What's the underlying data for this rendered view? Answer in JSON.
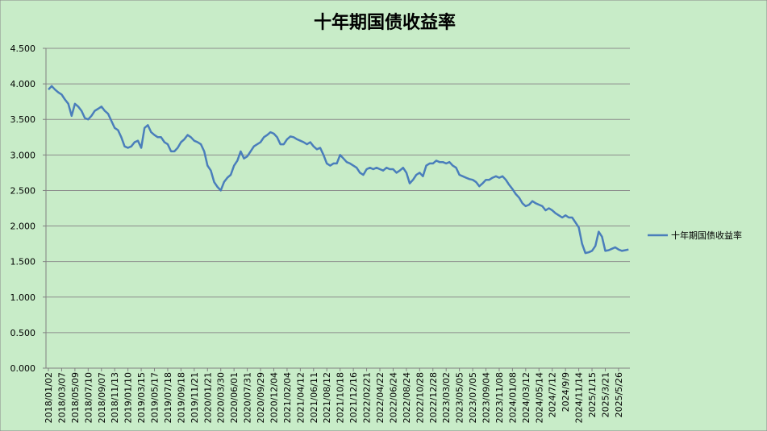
{
  "chart_data": {
    "type": "line",
    "title": "十年期国债收益率",
    "categories": [
      "2018/01/02",
      null,
      null,
      null,
      "2018/03/07",
      null,
      null,
      null,
      "2018/05/09",
      null,
      null,
      null,
      "2018/07/10",
      null,
      null,
      null,
      "2018/09/07",
      null,
      null,
      null,
      "2018/11/13",
      null,
      null,
      null,
      "2019/01/10",
      null,
      null,
      null,
      "2019/03/15",
      null,
      null,
      null,
      "2019/05/17",
      null,
      null,
      null,
      "2019/07/18",
      null,
      null,
      null,
      "2019/09/18",
      null,
      null,
      null,
      "2019/11/21",
      null,
      null,
      null,
      "2020/01/21",
      null,
      null,
      null,
      "2020/03/30",
      null,
      null,
      null,
      "2020/06/01",
      null,
      null,
      null,
      "2020/07/31",
      null,
      null,
      null,
      "2020/09/29",
      null,
      null,
      null,
      "2020/12/04",
      null,
      null,
      null,
      "2021/02/04",
      null,
      null,
      null,
      "2021/04/12",
      null,
      null,
      null,
      "2021/06/11",
      null,
      null,
      null,
      "2021/08/12",
      null,
      null,
      null,
      "2021/10/18",
      null,
      null,
      null,
      "2021/12/16",
      null,
      null,
      null,
      "2022/02/21",
      null,
      null,
      null,
      "2022/04/22",
      null,
      null,
      null,
      "2022/06/24",
      null,
      null,
      null,
      "2022/08/24",
      null,
      null,
      null,
      "2022/10/28",
      null,
      null,
      null,
      "2022/12/28",
      null,
      null,
      null,
      "2023/03/02",
      null,
      null,
      null,
      "2023/05/05",
      null,
      null,
      null,
      "2023/07/05",
      null,
      null,
      null,
      "2023/09/04",
      null,
      null,
      null,
      "2023/11/08",
      null,
      null,
      null,
      "2024/01/08",
      null,
      null,
      null,
      "2024/03/12",
      null,
      null,
      null,
      "2024/05/14",
      null,
      null,
      null,
      "2024/7/12",
      null,
      null,
      null,
      "2024/9/9",
      null,
      null,
      null,
      "2024/11/14",
      null,
      null,
      null,
      "2025/1/15",
      null,
      null,
      null,
      "2025/3/21",
      null,
      null,
      null,
      "2025/5/26",
      null,
      null,
      null
    ],
    "series": [
      {
        "name": "十年期国债收益率",
        "color": "#4a7ebb",
        "values": [
          3.92,
          3.97,
          3.92,
          3.88,
          3.85,
          3.78,
          3.72,
          3.55,
          3.72,
          3.68,
          3.62,
          3.52,
          3.5,
          3.55,
          3.62,
          3.65,
          3.68,
          3.62,
          3.58,
          3.48,
          3.38,
          3.35,
          3.25,
          3.12,
          3.1,
          3.12,
          3.18,
          3.2,
          3.1,
          3.38,
          3.42,
          3.32,
          3.28,
          3.25,
          3.25,
          3.18,
          3.15,
          3.05,
          3.05,
          3.1,
          3.18,
          3.22,
          3.28,
          3.25,
          3.2,
          3.18,
          3.15,
          3.05,
          2.85,
          2.78,
          2.62,
          2.55,
          2.5,
          2.62,
          2.68,
          2.72,
          2.85,
          2.92,
          3.05,
          2.95,
          2.98,
          3.05,
          3.12,
          3.15,
          3.18,
          3.25,
          3.28,
          3.32,
          3.3,
          3.25,
          3.15,
          3.15,
          3.22,
          3.26,
          3.25,
          3.22,
          3.2,
          3.18,
          3.15,
          3.18,
          3.12,
          3.08,
          3.1,
          3.0,
          2.88,
          2.85,
          2.88,
          2.88,
          3.0,
          2.95,
          2.9,
          2.88,
          2.85,
          2.82,
          2.75,
          2.72,
          2.8,
          2.82,
          2.8,
          2.82,
          2.8,
          2.78,
          2.82,
          2.8,
          2.8,
          2.75,
          2.78,
          2.82,
          2.75,
          2.6,
          2.65,
          2.72,
          2.75,
          2.7,
          2.85,
          2.88,
          2.88,
          2.92,
          2.9,
          2.9,
          2.88,
          2.9,
          2.85,
          2.82,
          2.72,
          2.7,
          2.68,
          2.66,
          2.65,
          2.62,
          2.56,
          2.6,
          2.65,
          2.65,
          2.68,
          2.7,
          2.68,
          2.7,
          2.65,
          2.58,
          2.52,
          2.45,
          2.4,
          2.32,
          2.28,
          2.3,
          2.35,
          2.32,
          2.3,
          2.28,
          2.22,
          2.25,
          2.22,
          2.18,
          2.15,
          2.12,
          2.15,
          2.12,
          2.12,
          2.05,
          1.98,
          1.75,
          1.62,
          1.63,
          1.65,
          1.72,
          1.92,
          1.85,
          1.65,
          1.66,
          1.68,
          1.7,
          1.67,
          1.65,
          1.66,
          1.67
        ]
      }
    ],
    "ylim": [
      0,
      4.5
    ],
    "yticks": [
      {
        "value": 0,
        "label": "0.000"
      },
      {
        "value": 0.5,
        "label": "0.500"
      },
      {
        "value": 1,
        "label": "1.000"
      },
      {
        "value": 1.5,
        "label": "1.500"
      },
      {
        "value": 2,
        "label": "2.000"
      },
      {
        "value": 2.5,
        "label": "2.500"
      },
      {
        "value": 3,
        "label": "3.000"
      },
      {
        "value": 3.5,
        "label": "3.500"
      },
      {
        "value": 4,
        "label": "4.000"
      },
      {
        "value": 4.5,
        "label": "4.500"
      }
    ],
    "grid": true,
    "legend": "right"
  }
}
